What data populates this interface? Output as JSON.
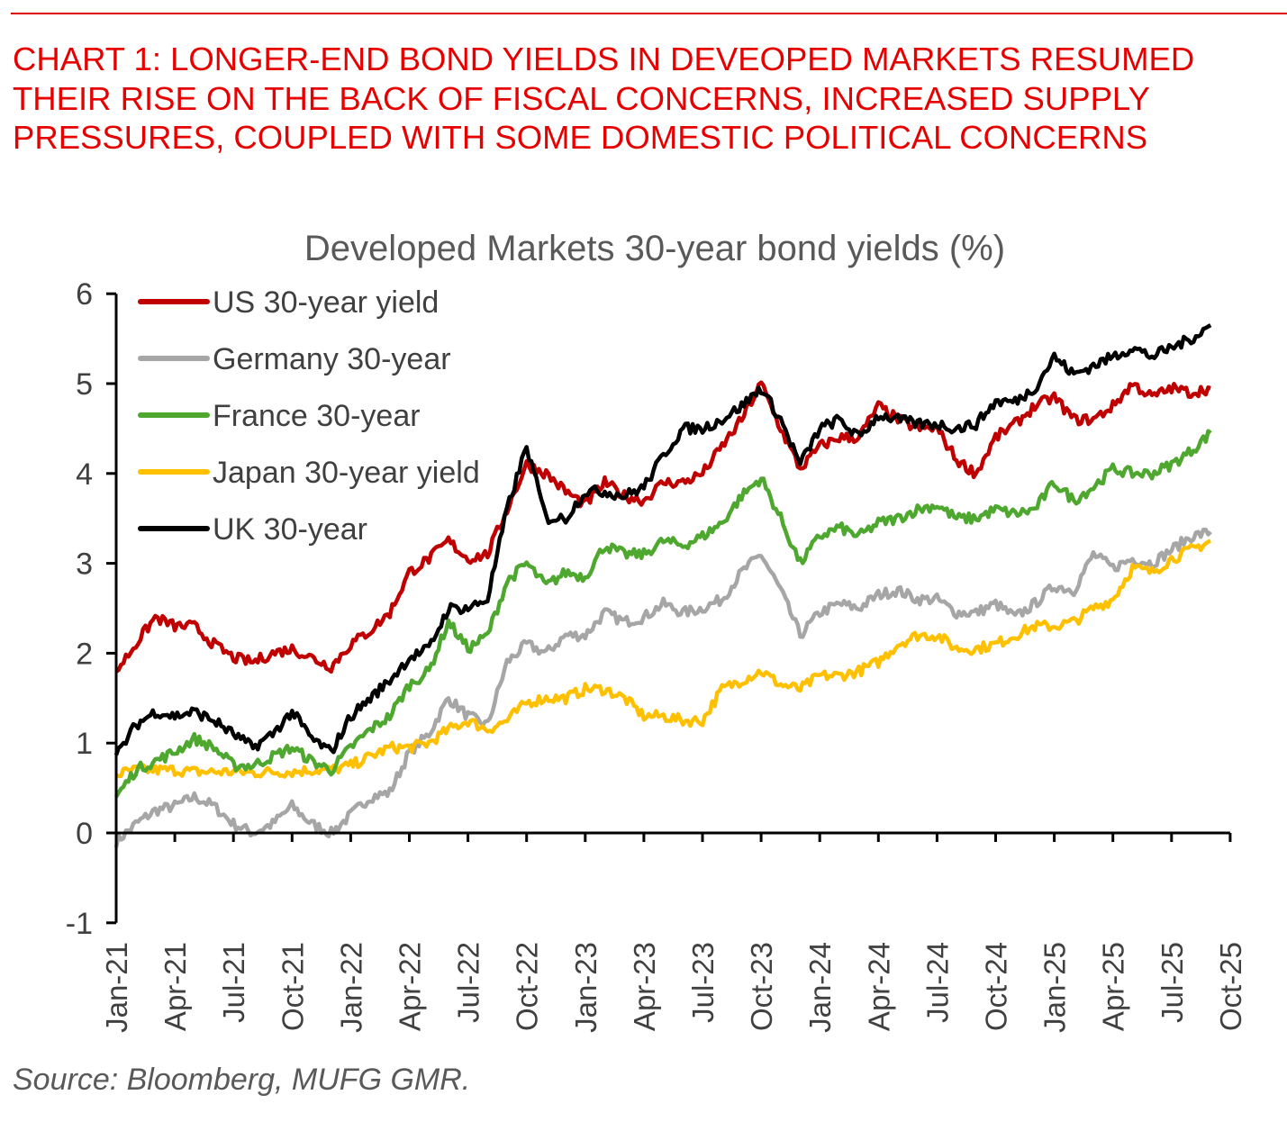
{
  "headline": "CHART 1: LONGER-END BOND YIELDS IN DEVEOPED MARKETS RESUMED THEIR RISE ON THE BACK OF FISCAL CONCERNS, INCREASED SUPPLY PRESSURES, COUPLED WITH SOME DOMESTIC POLITICAL CONCERNS",
  "source": "Source: Bloomberg, MUFG GMR.",
  "chart_data": {
    "type": "line",
    "title": "Developed Markets 30-year bond yields (%)",
    "xlabel": "",
    "ylabel": "",
    "ylim": [
      -1,
      6
    ],
    "yticks": [
      "-1",
      "0",
      "1",
      "2",
      "3",
      "4",
      "5",
      "6"
    ],
    "xticks": [
      "Jan-21",
      "Apr-21",
      "Jul-21",
      "Oct-21",
      "Jan-22",
      "Apr-22",
      "Jul-22",
      "Oct-22",
      "Jan-23",
      "Apr-23",
      "Jul-23",
      "Oct-23",
      "Jan-24",
      "Apr-24",
      "Jul-24",
      "Oct-24",
      "Jan-25",
      "Apr-25",
      "Jul-25",
      "Oct-25"
    ],
    "x_start": "Jan-21",
    "x_frequency": "monthly",
    "legend_position": "top-left",
    "grid": false,
    "series": [
      {
        "name": "US 30-year yield",
        "color": "#c00000",
        "values": [
          1.8,
          2.1,
          2.4,
          2.3,
          2.3,
          2.1,
          1.95,
          1.9,
          2.0,
          2.05,
          1.95,
          1.85,
          2.1,
          2.25,
          2.45,
          2.9,
          3.05,
          3.25,
          3.05,
          3.1,
          3.6,
          4.1,
          4.0,
          3.8,
          3.65,
          3.9,
          3.75,
          3.7,
          3.9,
          3.9,
          4.0,
          4.3,
          4.6,
          5.0,
          4.5,
          4.05,
          4.3,
          4.4,
          4.4,
          4.75,
          4.6,
          4.5,
          4.5,
          4.15,
          4.0,
          4.4,
          4.55,
          4.75,
          4.85,
          4.6,
          4.6,
          4.75,
          5.0,
          4.85,
          4.95,
          4.9,
          4.95
        ]
      },
      {
        "name": "Germany 30-year",
        "color": "#a6a6a6",
        "values": [
          -0.1,
          0.1,
          0.25,
          0.3,
          0.4,
          0.3,
          0.1,
          0.0,
          0.1,
          0.3,
          0.1,
          0.0,
          0.2,
          0.4,
          0.45,
          0.9,
          1.1,
          1.5,
          1.3,
          1.2,
          1.9,
          2.1,
          2.0,
          2.2,
          2.2,
          2.45,
          2.35,
          2.4,
          2.55,
          2.45,
          2.5,
          2.6,
          2.9,
          3.1,
          2.7,
          2.2,
          2.45,
          2.55,
          2.5,
          2.65,
          2.7,
          2.6,
          2.6,
          2.45,
          2.45,
          2.55,
          2.4,
          2.55,
          2.75,
          2.7,
          3.1,
          2.95,
          3.05,
          3.0,
          3.15,
          3.3,
          3.35
        ]
      },
      {
        "name": "France 30-year",
        "color": "#4ea72e",
        "values": [
          0.4,
          0.7,
          0.8,
          0.9,
          1.05,
          0.95,
          0.75,
          0.75,
          0.85,
          0.95,
          0.8,
          0.7,
          0.95,
          1.15,
          1.3,
          1.65,
          1.8,
          2.35,
          2.05,
          2.2,
          2.8,
          3.0,
          2.75,
          2.9,
          2.85,
          3.2,
          3.1,
          3.1,
          3.25,
          3.2,
          3.3,
          3.45,
          3.75,
          3.95,
          3.5,
          3.0,
          3.3,
          3.4,
          3.3,
          3.45,
          3.5,
          3.6,
          3.65,
          3.5,
          3.5,
          3.6,
          3.55,
          3.6,
          3.9,
          3.7,
          3.85,
          4.05,
          4.0,
          4.0,
          4.1,
          4.25,
          4.45
        ]
      },
      {
        "name": "Japan 30-year yield",
        "color": "#ffc000",
        "values": [
          0.65,
          0.7,
          0.7,
          0.7,
          0.68,
          0.68,
          0.68,
          0.67,
          0.68,
          0.68,
          0.7,
          0.7,
          0.75,
          0.85,
          0.95,
          0.95,
          1.0,
          1.15,
          1.25,
          1.15,
          1.25,
          1.45,
          1.5,
          1.5,
          1.6,
          1.6,
          1.5,
          1.3,
          1.3,
          1.25,
          1.25,
          1.6,
          1.7,
          1.8,
          1.65,
          1.6,
          1.75,
          1.75,
          1.8,
          1.9,
          2.1,
          2.2,
          2.2,
          2.05,
          2.05,
          2.1,
          2.2,
          2.3,
          2.3,
          2.35,
          2.5,
          2.6,
          2.95,
          2.9,
          3.05,
          3.15,
          3.25
        ]
      },
      {
        "name": "UK 30-year",
        "color": "#000000",
        "values": [
          0.85,
          1.2,
          1.35,
          1.3,
          1.35,
          1.25,
          1.1,
          0.95,
          1.1,
          1.35,
          1.05,
          0.9,
          1.3,
          1.5,
          1.7,
          1.95,
          2.05,
          2.5,
          2.5,
          2.6,
          3.6,
          4.3,
          3.5,
          3.5,
          3.8,
          3.8,
          3.75,
          3.85,
          4.2,
          4.5,
          4.5,
          4.6,
          4.75,
          4.95,
          4.6,
          4.1,
          4.5,
          4.6,
          4.4,
          4.65,
          4.6,
          4.55,
          4.55,
          4.5,
          4.55,
          4.8,
          4.8,
          4.95,
          5.3,
          5.1,
          5.2,
          5.3,
          5.4,
          5.3,
          5.4,
          5.5,
          5.65
        ]
      }
    ]
  }
}
